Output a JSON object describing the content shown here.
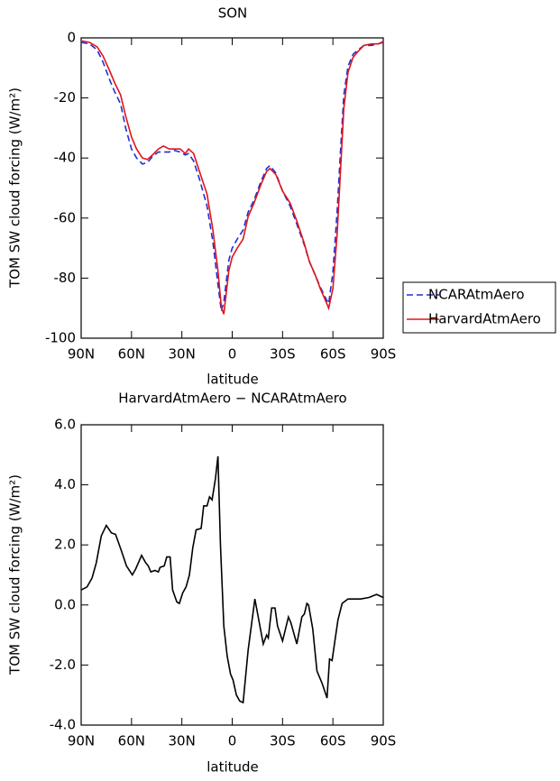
{
  "chart_data": [
    {
      "type": "line",
      "title": "SON",
      "xlabel": "latitude",
      "ylabel": "TOM SW cloud forcing (W/m²)",
      "x": [
        90,
        85,
        80.5,
        77,
        73,
        70,
        66.5,
        63.5,
        60,
        57,
        53.5,
        50.5,
        47.5,
        44,
        41,
        37.5,
        34.5,
        31,
        28,
        26,
        23,
        19.5,
        15,
        11.5,
        8.5,
        6.5,
        5,
        2,
        0,
        -3,
        -6.5,
        -9.5,
        -13,
        -17,
        -20.5,
        -22.5,
        -26,
        -30,
        -34.5,
        -38.5,
        -43,
        -46,
        -49.5,
        -52.5,
        -56,
        -57.5,
        -60,
        -62.5,
        -64.5,
        -66.5,
        -69,
        -72,
        -75,
        -78.5,
        -83,
        -87,
        -90
      ],
      "series": [
        {
          "name": "NCARAtmAero",
          "color": "#1f2fd6",
          "line_style": "dashed",
          "values": [
            -1.5,
            -2,
            -4,
            -8,
            -14,
            -18,
            -22,
            -30,
            -37,
            -40,
            -42,
            -41.5,
            -39.5,
            -38,
            -38,
            -38,
            -37.5,
            -38,
            -39,
            -38.5,
            -41,
            -47,
            -56,
            -68,
            -82,
            -91,
            -88,
            -74,
            -70,
            -67,
            -64,
            -58,
            -54,
            -48,
            -43.5,
            -42.5,
            -45,
            -51,
            -56,
            -62,
            -69,
            -74.5,
            -79,
            -83,
            -87,
            -88.5,
            -78,
            -58,
            -38,
            -19,
            -9.5,
            -5.5,
            -4,
            -2.5,
            -2.5,
            -2,
            -1.5
          ]
        },
        {
          "name": "HarvardAtmAero",
          "color": "#e0141c",
          "line_style": "solid",
          "values": [
            -1,
            -1.5,
            -3,
            -6,
            -11,
            -15,
            -19,
            -26,
            -33,
            -37,
            -40,
            -40.5,
            -39,
            -37,
            -36,
            -37,
            -37,
            -37,
            -38.5,
            -37,
            -38.5,
            -44.5,
            -52,
            -64,
            -77.5,
            -89.5,
            -92,
            -77.5,
            -73,
            -70,
            -67,
            -59.5,
            -55,
            -49,
            -44.5,
            -43.5,
            -45.5,
            -51,
            -55,
            -61,
            -68.5,
            -74.5,
            -79,
            -83.5,
            -88,
            -90,
            -83.5,
            -65.5,
            -44.5,
            -23.5,
            -11.5,
            -6.5,
            -4.5,
            -2.5,
            -2,
            -2,
            -1.2
          ]
        }
      ],
      "xlim": [
        90,
        -90
      ],
      "xticks": [
        {
          "value": 90,
          "label": "90N"
        },
        {
          "value": 60,
          "label": "60N"
        },
        {
          "value": 30,
          "label": "30N"
        },
        0,
        {
          "value": -30,
          "label": "30S"
        },
        {
          "value": -60,
          "label": "60S"
        },
        {
          "value": -90,
          "label": "90S"
        }
      ],
      "ylim": [
        -100,
        0
      ],
      "yticks": [
        -100,
        -80,
        -60,
        -40,
        -20,
        0
      ],
      "legend": "outside-right"
    },
    {
      "type": "line",
      "title": "HarvardAtmAero − NCARAtmAero",
      "xlabel": "latitude",
      "ylabel": "TOM SW cloud forcing (W/m²)",
      "color": "#000000",
      "line_style": "solid",
      "x": [
        90,
        86.5,
        83.5,
        81,
        78,
        75,
        72,
        69.5,
        66,
        63,
        59.5,
        57.5,
        54,
        51.5,
        50,
        48.5,
        46,
        44,
        43,
        40.5,
        39,
        37,
        35.5,
        33,
        31.5,
        29.5,
        27.5,
        25.5,
        23.5,
        21.5,
        18.5,
        17,
        15,
        13.5,
        12,
        10,
        8.5,
        7,
        5,
        3,
        1,
        -0.5,
        -2.5,
        -4.5,
        -6.5,
        -9.5,
        -13.5,
        -18.5,
        -20.5,
        -21.5,
        -23.5,
        -25.5,
        -27,
        -30,
        -33.5,
        -35,
        -37,
        -38.5,
        -41.5,
        -43,
        -44.5,
        -45.5,
        -48,
        -50.5,
        -53.5,
        -56.5,
        -58,
        -59.5,
        -63,
        -65.5,
        -69,
        -76.5,
        -81.5,
        -86,
        -90
      ],
      "values": [
        0.5,
        0.6,
        0.9,
        1.4,
        2.3,
        2.65,
        2.4,
        2.35,
        1.8,
        1.3,
        1.0,
        1.2,
        1.65,
        1.4,
        1.3,
        1.1,
        1.15,
        1.1,
        1.25,
        1.3,
        1.6,
        1.6,
        0.5,
        0.1,
        0.05,
        0.4,
        0.6,
        1.0,
        1.9,
        2.5,
        2.55,
        3.3,
        3.3,
        3.6,
        3.5,
        4.2,
        4.95,
        2.0,
        -0.7,
        -1.7,
        -2.3,
        -2.5,
        -3.0,
        -3.2,
        -3.25,
        -1.5,
        0.2,
        -1.3,
        -1.0,
        -1.1,
        -0.1,
        -0.1,
        -0.7,
        -1.2,
        -0.4,
        -0.6,
        -1.0,
        -1.3,
        -0.4,
        -0.3,
        0.05,
        0.0,
        -0.8,
        -2.2,
        -2.6,
        -3.1,
        -1.8,
        -1.85,
        -0.5,
        0.05,
        0.2,
        0.2,
        0.25,
        0.35,
        0.25
      ],
      "xlim": [
        90,
        -90
      ],
      "xticks": [
        {
          "value": 90,
          "label": "90N"
        },
        {
          "value": 60,
          "label": "60N"
        },
        {
          "value": 30,
          "label": "30N"
        },
        0,
        {
          "value": -30,
          "label": "30S"
        },
        {
          "value": -60,
          "label": "60S"
        },
        {
          "value": -90,
          "label": "90S"
        }
      ],
      "ylim": [
        -4,
        6
      ],
      "yticks": [
        {
          "value": -4,
          "label": "-4.0"
        },
        {
          "value": -2,
          "label": "-2.0"
        },
        {
          "value": 0,
          "label": "0.0"
        },
        {
          "value": 2,
          "label": "2.0"
        },
        {
          "value": 4,
          "label": "4.0"
        },
        {
          "value": 6,
          "label": "6.0"
        }
      ]
    }
  ]
}
